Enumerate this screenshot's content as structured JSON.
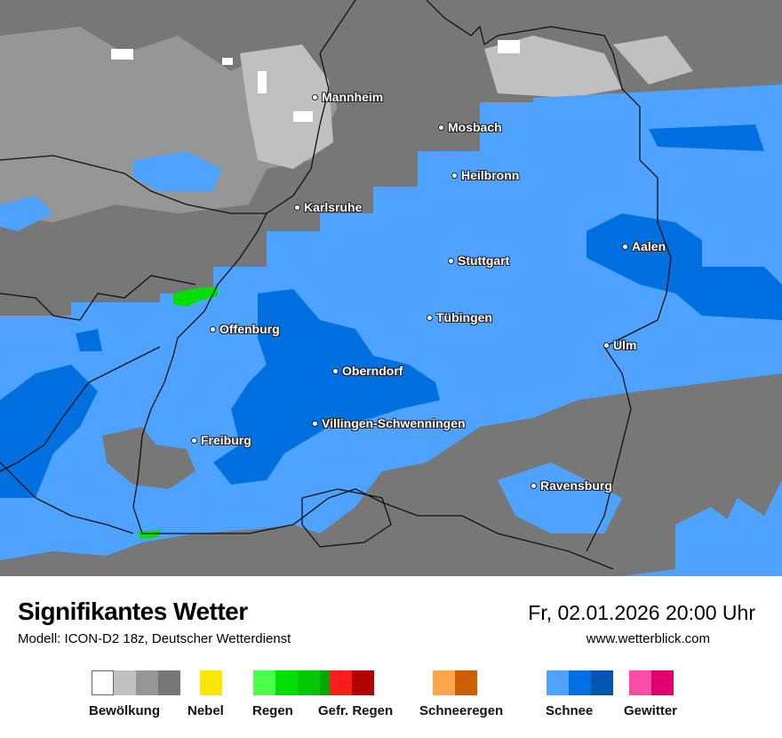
{
  "header": {
    "title": "Signifikantes Wetter",
    "model": "Modell: ICON-D2 18z, Deutscher Wetterdienst",
    "datetime": "Fr, 02.01.2026 20:00 Uhr",
    "website": "www.wetterblick.com"
  },
  "cities": [
    "Mannheim",
    "Mosbach",
    "Heilbronn",
    "Karlsruhe",
    "Aalen",
    "Stuttgart",
    "Tübingen",
    "Offenburg",
    "Ulm",
    "Oberndorf",
    "Villingen-Schwenningen",
    "Freiburg",
    "Ravensburg"
  ],
  "legend": [
    {
      "label": "Bewölkung",
      "colors": [
        "#ffffff",
        "#c0c0c0",
        "#969696",
        "#777777"
      ]
    },
    {
      "label": "Nebel",
      "colors": [
        "#ffe600"
      ]
    },
    {
      "label": "Regen",
      "colors": [
        "#4cff4c",
        "#00e000",
        "#00c800",
        "#00a800"
      ]
    },
    {
      "label": "Gefr. Regen",
      "colors": [
        "#ff1c1c",
        "#b00000"
      ]
    },
    {
      "label": "Schneeregen",
      "colors": [
        "#ffa64d",
        "#cc5f00"
      ]
    },
    {
      "label": "Schnee",
      "colors": [
        "#4da3ff",
        "#0070e0",
        "#0055b0"
      ]
    },
    {
      "label": "Gewitter",
      "colors": [
        "#ff4da6",
        "#e0006e"
      ]
    }
  ]
}
